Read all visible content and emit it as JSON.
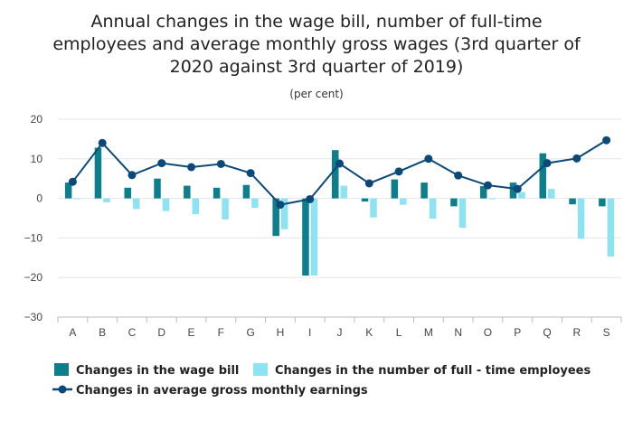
{
  "chart_data": {
    "type": "bar",
    "title_lines": [
      "Annual changes in the wage bill, number of full-time",
      "employees and average monthly gross wages (3rd quarter of",
      "2020 against 3rd quarter of 2019)"
    ],
    "subtitle": "(per cent)",
    "categories": [
      "A",
      "B",
      "C",
      "D",
      "E",
      "F",
      "G",
      "H",
      "I",
      "J",
      "K",
      "L",
      "M",
      "N",
      "O",
      "P",
      "Q",
      "R",
      "S"
    ],
    "ylim": [
      -30,
      20
    ],
    "yticks": [
      20,
      10,
      0,
      -10,
      -20,
      -30
    ],
    "grid": true,
    "legend_position": "bottom-left",
    "series": [
      {
        "name": "Changes in the wage bill",
        "kind": "bar",
        "color": "#0d7f8c",
        "values": [
          4.0,
          12.8,
          2.7,
          5.0,
          3.2,
          2.7,
          3.4,
          -9.5,
          -19.5,
          12.2,
          -0.8,
          4.8,
          4.0,
          -2.0,
          3.1,
          4.0,
          11.4,
          -1.5,
          -2.0
        ]
      },
      {
        "name": "Changes in the number of full - time employees",
        "kind": "bar",
        "color": "#8ee3f2",
        "values": [
          -0.2,
          -1.0,
          -2.7,
          -3.2,
          -4.0,
          -5.3,
          -2.4,
          -7.8,
          -19.5,
          3.2,
          -4.8,
          -1.6,
          -5.1,
          -7.4,
          -0.2,
          1.6,
          2.4,
          -10.2,
          -14.7
        ]
      },
      {
        "name": "Changes in average gross monthly earnings",
        "kind": "line",
        "color": "#0b4a78",
        "values": [
          4.2,
          14.0,
          5.9,
          8.9,
          7.9,
          8.7,
          6.4,
          -1.6,
          -0.2,
          8.8,
          3.8,
          6.8,
          10.0,
          5.8,
          3.3,
          2.4,
          8.9,
          10.1,
          14.7
        ]
      }
    ]
  }
}
